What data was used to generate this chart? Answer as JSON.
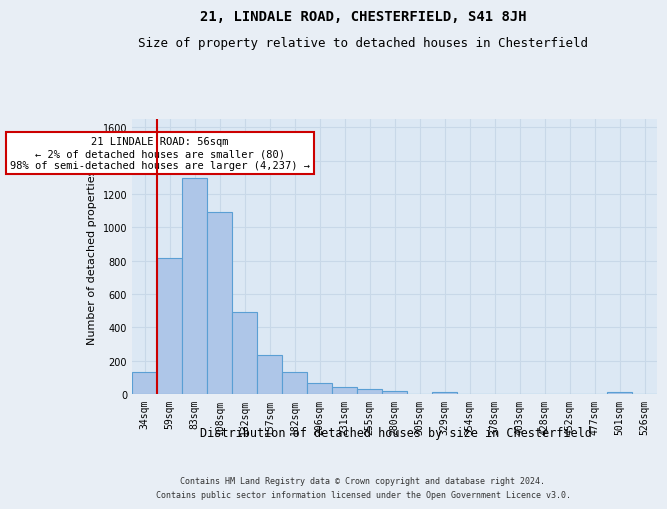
{
  "title": "21, LINDALE ROAD, CHESTERFIELD, S41 8JH",
  "subtitle": "Size of property relative to detached houses in Chesterfield",
  "xlabel": "Distribution of detached houses by size in Chesterfield",
  "ylabel": "Number of detached properties",
  "footer_line1": "Contains HM Land Registry data © Crown copyright and database right 2024.",
  "footer_line2": "Contains public sector information licensed under the Open Government Licence v3.0.",
  "categories": [
    "34sqm",
    "59sqm",
    "83sqm",
    "108sqm",
    "132sqm",
    "157sqm",
    "182sqm",
    "206sqm",
    "231sqm",
    "255sqm",
    "280sqm",
    "305sqm",
    "329sqm",
    "354sqm",
    "378sqm",
    "403sqm",
    "428sqm",
    "452sqm",
    "477sqm",
    "501sqm",
    "526sqm"
  ],
  "bar_values": [
    135,
    815,
    1295,
    1090,
    490,
    232,
    130,
    65,
    40,
    28,
    20,
    0,
    15,
    0,
    0,
    0,
    0,
    0,
    0,
    15,
    0
  ],
  "bar_color": "#aec6e8",
  "bar_edgecolor": "#5a9fd4",
  "bar_linewidth": 0.8,
  "property_label": "21 LINDALE ROAD: 56sqm",
  "annotation_line1": "← 2% of detached houses are smaller (80)",
  "annotation_line2": "98% of semi-detached houses are larger (4,237) →",
  "annotation_box_color": "#ffffff",
  "annotation_box_edgecolor": "#cc0000",
  "property_line_color": "#cc0000",
  "ylim": [
    0,
    1650
  ],
  "yticks": [
    0,
    200,
    400,
    600,
    800,
    1000,
    1200,
    1400,
    1600
  ],
  "grid_color": "#c8d8e8",
  "bg_color": "#e8eef5",
  "plot_bg_color": "#dce8f4",
  "title_fontsize": 10,
  "subtitle_fontsize": 9,
  "tick_fontsize": 7,
  "ylabel_fontsize": 8,
  "xlabel_fontsize": 8.5,
  "footer_fontsize": 6,
  "annotation_fontsize": 7.5
}
